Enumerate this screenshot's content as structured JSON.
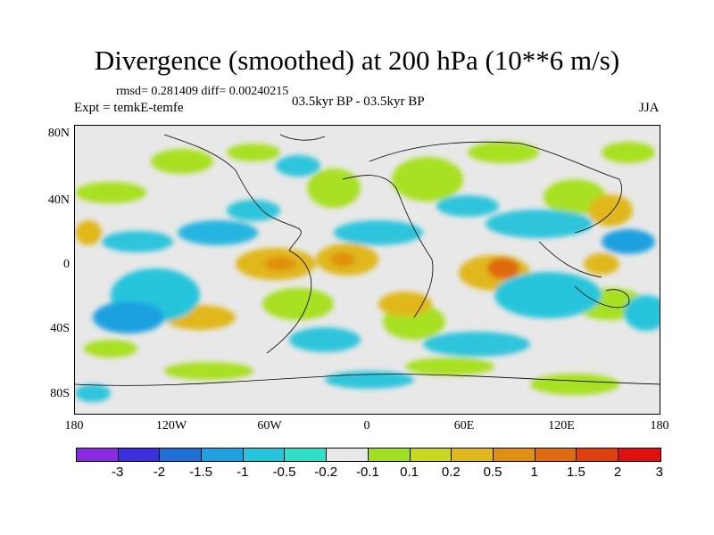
{
  "title": "Divergence (smoothed) at 200 hPa (10**6 m/s)",
  "stats": "rmsd= 0.281409 diff= 0.00240215",
  "experiment": "Expt = temkE-temfe",
  "period": "03.5kyr BP - 03.5kyr BP",
  "season": "JJA",
  "y_axis_labels": [
    "80N",
    "40N",
    "0",
    "40S",
    "80S"
  ],
  "x_axis_labels": [
    "180",
    "120W",
    "60W",
    "0",
    "60E",
    "120E",
    "180"
  ],
  "colorbar": {
    "colors": [
      "#8a2be2",
      "#3c2fdc",
      "#1e6fd6",
      "#1fa0e0",
      "#25c5dc",
      "#2fe0c8",
      "#e8e8e8",
      "#a0e020",
      "#c8d81c",
      "#e0b81a",
      "#e09010",
      "#e06a10",
      "#e04010",
      "#e01010"
    ],
    "labels": [
      "-3",
      "-2",
      "-1.5",
      "-1",
      "-0.5",
      "-0.2",
      "-0.1",
      "0.1",
      "0.2",
      "0.5",
      "1",
      "1.5",
      "2",
      "3"
    ]
  }
}
